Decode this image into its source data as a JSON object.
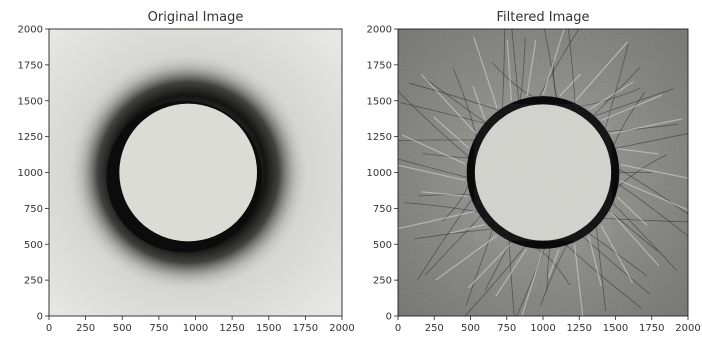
{
  "chart_data": [
    {
      "type": "image",
      "title": "Original Image",
      "xlabel": "",
      "ylabel": "",
      "xlim": [
        0,
        2000
      ],
      "ylim": [
        0,
        2000
      ],
      "xticks": [
        "0",
        "250",
        "500",
        "750",
        "1000",
        "1250",
        "1500",
        "1750",
        "2000"
      ],
      "yticks": [
        "0",
        "250",
        "500",
        "750",
        "1000",
        "1250",
        "1500",
        "1750",
        "2000"
      ],
      "disk_center": [
        950,
        1000
      ],
      "disk_radius": 470,
      "colormap": "gray"
    },
    {
      "type": "image",
      "title": "Filtered Image",
      "xlabel": "",
      "ylabel": "",
      "xlim": [
        0,
        2000
      ],
      "ylim": [
        0,
        2000
      ],
      "xticks": [
        "0",
        "250",
        "500",
        "750",
        "1000",
        "1250",
        "1500",
        "1750",
        "2000"
      ],
      "yticks": [
        "0",
        "250",
        "500",
        "750",
        "1000",
        "1250",
        "1500",
        "1750",
        "2000"
      ],
      "disk_center": [
        1000,
        1000
      ],
      "disk_radius": 470,
      "colormap": "gray"
    }
  ]
}
